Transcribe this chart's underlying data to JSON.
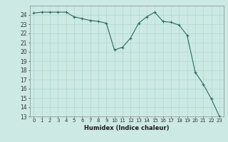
{
  "x": [
    0,
    1,
    2,
    3,
    4,
    5,
    6,
    7,
    8,
    9,
    10,
    11,
    12,
    13,
    14,
    15,
    16,
    17,
    18,
    19,
    20,
    21,
    22,
    23
  ],
  "y": [
    24.2,
    24.3,
    24.3,
    24.3,
    24.3,
    23.8,
    23.6,
    23.4,
    23.3,
    23.1,
    20.2,
    20.5,
    21.5,
    23.1,
    23.8,
    24.3,
    23.3,
    23.2,
    22.9,
    21.8,
    17.8,
    16.5,
    14.9,
    13.0
  ],
  "line_color": "#2e6b5e",
  "marker": "+",
  "marker_size": 3,
  "bg_color": "#cce9e4",
  "grid_color": "#b0d8d0",
  "xlabel": "Humidex (Indice chaleur)",
  "xlim": [
    -0.5,
    23.5
  ],
  "ylim": [
    13,
    25
  ],
  "yticks": [
    13,
    14,
    15,
    16,
    17,
    18,
    19,
    20,
    21,
    22,
    23,
    24
  ],
  "xticks": [
    0,
    1,
    2,
    3,
    4,
    5,
    6,
    7,
    8,
    9,
    10,
    11,
    12,
    13,
    14,
    15,
    16,
    17,
    18,
    19,
    20,
    21,
    22,
    23
  ]
}
